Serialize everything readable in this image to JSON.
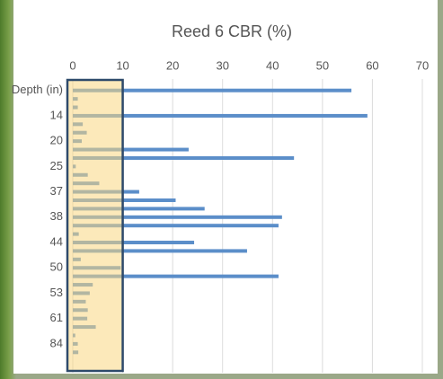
{
  "chart_data": {
    "type": "bar",
    "orientation": "horizontal",
    "title": "Reed 6 CBR (%)",
    "categories": [
      "Depth (in)",
      null,
      null,
      "14",
      null,
      null,
      "20",
      null,
      null,
      "25",
      null,
      null,
      "37",
      null,
      null,
      "38",
      null,
      null,
      "44",
      null,
      null,
      "50",
      null,
      null,
      "53",
      null,
      null,
      "61",
      null,
      null,
      "84",
      null
    ],
    "values": [
      55.8,
      1,
      1,
      59,
      2,
      2.8,
      1.8,
      23.2,
      44.3,
      0.6,
      3,
      5.3,
      13.3,
      20.6,
      26.4,
      41.9,
      41.2,
      1.2,
      24.3,
      34.9,
      1.6,
      9.6,
      41.2,
      4,
      3.4,
      2.6,
      3,
      2.9,
      4.6,
      0.5,
      1,
      1.1
    ],
    "color": "#5b8ec9",
    "xlim": [
      0,
      70
    ],
    "xticks": [
      0,
      10,
      20,
      30,
      40,
      50,
      60,
      70
    ],
    "grid": true
  }
}
